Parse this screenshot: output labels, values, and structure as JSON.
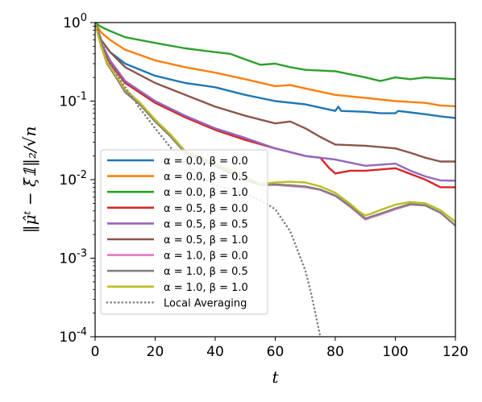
{
  "chart_data": {
    "type": "line",
    "xlabel": "t",
    "ylabel": "‖μ̂ᵗ − ξ̄𝟙‖₂/√n",
    "xlim": [
      0,
      120
    ],
    "ylim": [
      0.0001,
      1
    ],
    "yscale": "log",
    "grid": false,
    "legend_position": "lower-left",
    "xticks": [
      0,
      20,
      40,
      60,
      80,
      100,
      120
    ],
    "xtick_labels": [
      "0",
      "20",
      "40",
      "60",
      "80",
      "100",
      "120"
    ],
    "yticks": [
      1,
      0.1,
      0.01,
      0.001,
      0.0001
    ],
    "ytick_labels": [
      {
        "base": "10",
        "exp": "0"
      },
      {
        "base": "10",
        "exp": "-1"
      },
      {
        "base": "10",
        "exp": "-2"
      },
      {
        "base": "10",
        "exp": "-3"
      },
      {
        "base": "10",
        "exp": "-4"
      }
    ],
    "series": [
      {
        "name": "α = 0.0, β = 0.0",
        "color": "#1f77b4",
        "dash": "solid",
        "x": [
          0,
          2,
          5,
          10,
          20,
          30,
          40,
          50,
          60,
          70,
          80,
          81,
          82,
          90,
          95,
          100,
          101,
          110,
          115,
          120
        ],
        "y": [
          1.0,
          0.6,
          0.42,
          0.3,
          0.21,
          0.17,
          0.15,
          0.12,
          0.1,
          0.091,
          0.075,
          0.085,
          0.075,
          0.073,
          0.07,
          0.07,
          0.075,
          0.068,
          0.064,
          0.061
        ]
      },
      {
        "name": "α = 0.0, β = 0.5",
        "color": "#ff7f0e",
        "dash": "solid",
        "x": [
          0,
          2,
          5,
          10,
          20,
          30,
          40,
          50,
          60,
          65,
          70,
          80,
          90,
          100,
          110,
          115,
          120
        ],
        "y": [
          1.0,
          0.75,
          0.6,
          0.45,
          0.33,
          0.27,
          0.23,
          0.19,
          0.155,
          0.16,
          0.145,
          0.12,
          0.11,
          0.1,
          0.095,
          0.088,
          0.086
        ]
      },
      {
        "name": "α = 0.0, β = 1.0",
        "color": "#2ca02c",
        "dash": "solid",
        "x": [
          0,
          2,
          5,
          10,
          20,
          30,
          40,
          45,
          50,
          55,
          60,
          65,
          70,
          80,
          90,
          95,
          100,
          105,
          110,
          120
        ],
        "y": [
          1.0,
          0.88,
          0.78,
          0.65,
          0.55,
          0.47,
          0.42,
          0.4,
          0.34,
          0.29,
          0.3,
          0.27,
          0.25,
          0.24,
          0.2,
          0.18,
          0.2,
          0.19,
          0.2,
          0.19
        ]
      },
      {
        "name": "α = 0.5, β = 0.0",
        "color": "#d62728",
        "dash": "solid",
        "x": [
          0,
          2,
          5,
          10,
          20,
          30,
          40,
          50,
          60,
          70,
          75,
          78,
          80,
          85,
          90,
          100,
          110,
          115,
          120
        ],
        "y": [
          1.0,
          0.5,
          0.3,
          0.17,
          0.095,
          0.062,
          0.043,
          0.032,
          0.025,
          0.02,
          0.019,
          0.014,
          0.012,
          0.013,
          0.013,
          0.014,
          0.01,
          0.008,
          0.008
        ]
      },
      {
        "name": "α = 0.5, β = 0.5",
        "color": "#9467bd",
        "dash": "solid",
        "x": [
          0,
          2,
          5,
          10,
          20,
          30,
          40,
          50,
          60,
          70,
          80,
          90,
          100,
          105,
          110,
          115,
          120
        ],
        "y": [
          1.0,
          0.55,
          0.33,
          0.18,
          0.1,
          0.065,
          0.045,
          0.034,
          0.025,
          0.02,
          0.018,
          0.015,
          0.016,
          0.013,
          0.011,
          0.0098,
          0.0097
        ]
      },
      {
        "name": "α = 0.5, β = 1.0",
        "color": "#8c564b",
        "dash": "solid",
        "x": [
          0,
          2,
          5,
          10,
          20,
          30,
          40,
          50,
          60,
          65,
          70,
          75,
          80,
          90,
          100,
          105,
          110,
          115,
          120
        ],
        "y": [
          1.0,
          0.6,
          0.42,
          0.27,
          0.17,
          0.12,
          0.085,
          0.065,
          0.052,
          0.055,
          0.045,
          0.035,
          0.028,
          0.027,
          0.025,
          0.022,
          0.019,
          0.017,
          0.017
        ]
      },
      {
        "name": "α = 1.0, β = 0.0",
        "color": "#e377c2",
        "dash": "solid",
        "x": [
          0,
          2,
          4,
          7,
          10,
          15,
          20,
          25,
          30,
          40,
          50,
          55,
          60,
          65,
          70,
          75,
          80,
          85,
          88,
          90,
          92,
          95,
          100,
          105,
          110,
          115,
          120
        ],
        "y": [
          1.0,
          0.5,
          0.3,
          0.2,
          0.13,
          0.09,
          0.055,
          0.036,
          0.022,
          0.015,
          0.01,
          0.0085,
          0.0086,
          0.0083,
          0.008,
          0.0074,
          0.0062,
          0.0045,
          0.0036,
          0.0031,
          0.0033,
          0.0036,
          0.0042,
          0.0048,
          0.0047,
          0.0038,
          0.0026
        ]
      },
      {
        "name": "α = 1.0, β = 0.5",
        "color": "#7f7f7f",
        "dash": "solid",
        "x": [
          0,
          2,
          4,
          7,
          10,
          15,
          20,
          25,
          30,
          40,
          50,
          55,
          60,
          65,
          70,
          75,
          80,
          85,
          88,
          90,
          92,
          95,
          100,
          105,
          110,
          115,
          120
        ],
        "y": [
          1.0,
          0.5,
          0.3,
          0.2,
          0.13,
          0.09,
          0.055,
          0.036,
          0.022,
          0.015,
          0.01,
          0.0086,
          0.0087,
          0.0085,
          0.0082,
          0.0075,
          0.0063,
          0.0046,
          0.0037,
          0.0032,
          0.0034,
          0.0037,
          0.0043,
          0.0049,
          0.0047,
          0.0038,
          0.0026
        ]
      },
      {
        "name": "α = 1.0, β = 1.0",
        "color": "#bcbd22",
        "dash": "solid",
        "x": [
          0,
          2,
          4,
          7,
          10,
          15,
          20,
          25,
          30,
          40,
          50,
          55,
          60,
          65,
          70,
          75,
          80,
          85,
          88,
          90,
          92,
          95,
          100,
          105,
          110,
          115,
          120
        ],
        "y": [
          1.0,
          0.5,
          0.31,
          0.21,
          0.14,
          0.095,
          0.058,
          0.038,
          0.023,
          0.016,
          0.011,
          0.0088,
          0.0092,
          0.0094,
          0.0092,
          0.0082,
          0.0068,
          0.0049,
          0.0039,
          0.0035,
          0.0037,
          0.0041,
          0.0048,
          0.0052,
          0.005,
          0.0041,
          0.0029
        ]
      },
      {
        "name": "Local Averaging",
        "color": "#808080",
        "dash": "dotted",
        "x": [
          0,
          5,
          10,
          15,
          20,
          25,
          30,
          35,
          40,
          45,
          50,
          55,
          60,
          65,
          70,
          72,
          75
        ],
        "y": [
          1.0,
          0.3,
          0.15,
          0.08,
          0.045,
          0.026,
          0.016,
          0.011,
          0.0085,
          0.0075,
          0.0065,
          0.0055,
          0.0042,
          0.0022,
          0.0007,
          0.00035,
          0.0001
        ]
      }
    ]
  }
}
